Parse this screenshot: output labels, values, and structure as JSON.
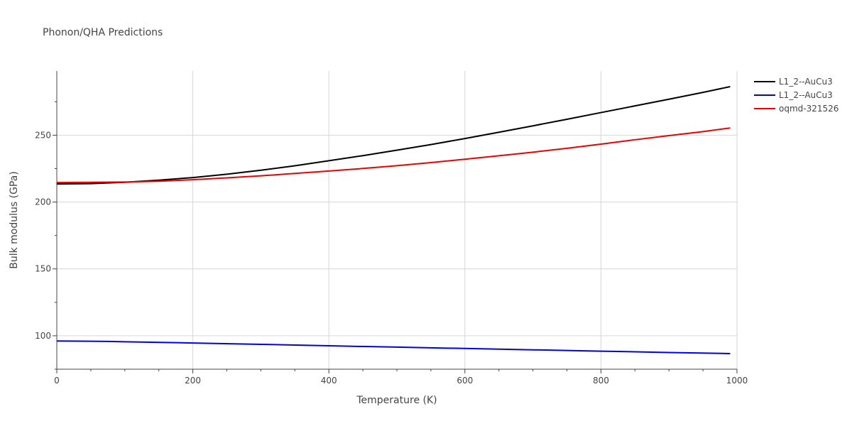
{
  "chart_data": {
    "type": "line",
    "title": "Phonon/QHA Predictions",
    "xlabel": "Temperature (K)",
    "ylabel": "Bulk modulus (GPa)",
    "xlim": [
      0,
      1000
    ],
    "ylim": [
      75,
      298
    ],
    "x_ticks": [
      0,
      200,
      400,
      600,
      800,
      1000
    ],
    "y_ticks": [
      100,
      150,
      200,
      250
    ],
    "grid": true,
    "legend_position": "top-right",
    "series": [
      {
        "name": "L1_2--AuCu3",
        "color": "#000000",
        "x": [
          0,
          50,
          100,
          150,
          200,
          250,
          300,
          350,
          400,
          450,
          500,
          550,
          600,
          650,
          700,
          750,
          800,
          850,
          900,
          950,
          990
        ],
        "y": [
          213.5,
          213.8,
          214.8,
          216.4,
          218.3,
          220.8,
          223.8,
          227.1,
          230.9,
          234.7,
          238.8,
          243.0,
          247.5,
          252.2,
          257.0,
          261.9,
          266.9,
          271.9,
          276.9,
          282.0,
          286.3
        ]
      },
      {
        "name": "L1_2--AuCu3",
        "color": "#0000ee",
        "x": [
          0,
          75,
          100,
          200,
          300,
          400,
          500,
          600,
          700,
          800,
          900,
          990
        ],
        "y": [
          96.1,
          95.8,
          95.5,
          94.6,
          93.6,
          92.5,
          91.5,
          90.5,
          89.5,
          88.5,
          87.5,
          86.7
        ]
      },
      {
        "name": "oqmd-321526",
        "color": "#ee0000",
        "x": [
          0,
          50,
          100,
          150,
          200,
          250,
          300,
          350,
          400,
          450,
          500,
          550,
          600,
          650,
          700,
          750,
          800,
          850,
          900,
          950,
          990
        ],
        "y": [
          214.6,
          214.8,
          215.0,
          215.6,
          216.7,
          218.1,
          219.6,
          221.4,
          223.2,
          225.1,
          227.2,
          229.5,
          232.0,
          234.6,
          237.3,
          240.2,
          243.3,
          246.6,
          249.7,
          252.7,
          255.4
        ]
      }
    ]
  }
}
